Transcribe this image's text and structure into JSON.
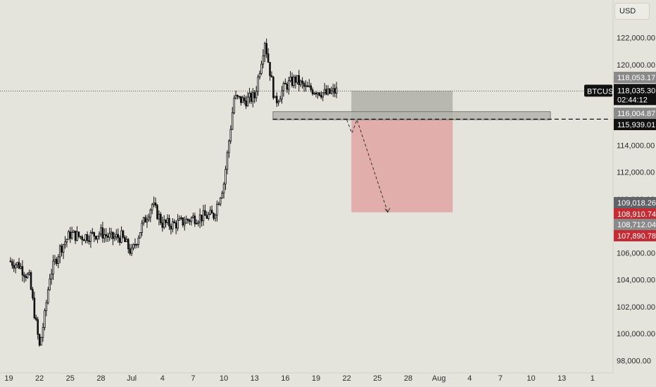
{
  "currency_button": "USD",
  "chart_data": {
    "type": "candlestick",
    "symbol": "BTCUSD",
    "currency": "USD",
    "x_tick_labels": [
      "19",
      "22",
      "25",
      "28",
      "Jul",
      "4",
      "7",
      "10",
      "13",
      "16",
      "19",
      "22",
      "25",
      "28",
      "Aug",
      "4",
      "7",
      "10",
      "13",
      "1"
    ],
    "y_tick_values": [
      98000,
      100000,
      102000,
      104000,
      106000,
      108000,
      110000,
      112000,
      114000,
      116000,
      118000,
      120000,
      122000
    ],
    "y_tick_labels": [
      "98,000.00",
      "100,000.00",
      "102,000.00",
      "104,000.00",
      "106,000.00",
      "108,000.00",
      "110,000.00",
      "112,000.00",
      "114,000.00",
      "116,000.00",
      "118,000.00",
      "120,000.00",
      "122,000.00"
    ],
    "ylim": [
      97600,
      124800
    ],
    "grid": false,
    "price_path": [
      [
        "19",
        105400
      ],
      [
        "20",
        105100
      ],
      [
        "21",
        104100
      ],
      [
        "22",
        99000
      ],
      [
        "22.5",
        101300
      ],
      [
        "23",
        104300
      ],
      [
        "24",
        106300
      ],
      [
        "25",
        107400
      ],
      [
        "26",
        107200
      ],
      [
        "27",
        107300
      ],
      [
        "28",
        107500
      ],
      [
        "29",
        107100
      ],
      [
        "30",
        107200
      ],
      [
        "Jul 1",
        106000
      ],
      [
        "Jul 2",
        108000
      ],
      [
        "Jul 3",
        109600
      ],
      [
        "Jul 4",
        108200
      ],
      [
        "Jul 5",
        108100
      ],
      [
        "Jul 6",
        108300
      ],
      [
        "Jul 7",
        108600
      ],
      [
        "Jul 8",
        108700
      ],
      [
        "Jul 9",
        108800
      ],
      [
        "Jul 10",
        111200
      ],
      [
        "Jul 11",
        117500
      ],
      [
        "Jul 12",
        117300
      ],
      [
        "Jul 13",
        117600
      ],
      [
        "Jul 14",
        121800
      ],
      [
        "Jul 15",
        117200
      ],
      [
        "Jul 16",
        118400
      ],
      [
        "Jul 17",
        118900
      ],
      [
        "Jul 18",
        118200
      ],
      [
        "Jul 19",
        118100
      ],
      [
        "Jul 20",
        117800
      ],
      [
        "Jul 21",
        118035
      ]
    ],
    "current_price": {
      "label": "BTCUSD",
      "price": "118,035.30",
      "countdown": "02:44:12"
    },
    "price_tags": [
      {
        "label": "118,053.17",
        "color": "#8a8a8a"
      },
      {
        "label": "116,004.87",
        "color": "#8a8a8a"
      },
      {
        "label": "115,939.01",
        "color": "#111111"
      },
      {
        "label": "109,018.26",
        "color": "#5f6368"
      },
      {
        "label": "108,910.74",
        "color": "#c62b34"
      },
      {
        "label": "108,712.04",
        "color": "#8a8a8a"
      },
      {
        "label": "107,890.78",
        "color": "#c62b34"
      }
    ],
    "support_zone": {
      "from": 115900,
      "to": 116500
    },
    "short_position": {
      "entry": 115939.01,
      "stop": 118053.17,
      "target": 109018.26,
      "from": "Jul 23",
      "to": "Aug 1"
    },
    "projection_path": [
      [
        "Jul 22",
        115900
      ],
      [
        "Jul 22.5",
        114900
      ],
      [
        "Jul 23",
        115900
      ],
      [
        "Jul 26",
        109018.26
      ]
    ],
    "colors": {
      "up": "#111111",
      "down": "#111111",
      "stop_zone": "#a9a9a3",
      "target_zone": "#e08a8a",
      "support_zone": "#b4b4ae",
      "background": "#e4e4dc"
    }
  }
}
